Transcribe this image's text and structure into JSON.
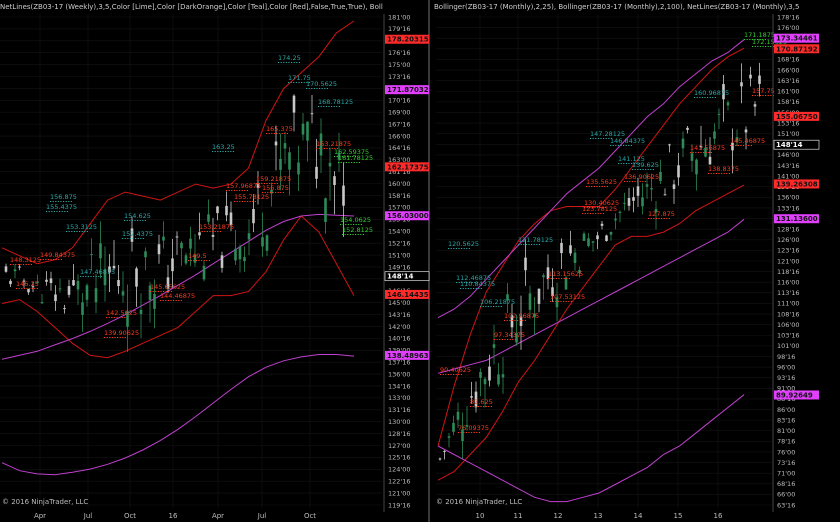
{
  "chart_data": [
    {
      "type": "candlestick",
      "header": "NetLines(ZB03-17 (Weekly),3,5,Color [Lime],Color [DarkOrange],Color [Teal],Color [Red],False,True,True), Boll",
      "copyright": "© 2016 NinjaTrader, LLC",
      "ylim": [
        119.3125,
        181.375
      ],
      "y_ticks": [
        "119'16",
        "121'00",
        "122'16",
        "124'00",
        "125'16",
        "127'00",
        "128'16",
        "130'00",
        "131'16",
        "133'00",
        "134'16",
        "136'00",
        "137'16",
        "139'00",
        "140'16",
        "142'00",
        "143'16",
        "145'00",
        "146'16",
        "148'00",
        "149'16",
        "151'00",
        "152'16",
        "154'00",
        "155'16",
        "157'00",
        "158'16",
        "160'00",
        "161'16",
        "163'00",
        "164'16",
        "166'00",
        "167'16",
        "169'00",
        "170'16",
        "172'00",
        "173'16",
        "175'00",
        "176'16",
        "178'00",
        "179'16",
        "181'00"
      ],
      "x_labels": [
        "Apr",
        "Jul",
        "Oct",
        "16",
        "Apr",
        "Jul",
        "Oct"
      ],
      "price_tags": [
        {
          "text": "178.20315",
          "value": 178.20315,
          "color": "#ff2a2a"
        },
        {
          "text": "171.87032",
          "value": 171.87032,
          "color": "#e040fb"
        },
        {
          "text": "162.17375",
          "value": 162.17375,
          "color": "#ff2a2a"
        },
        {
          "text": "156.03000",
          "value": 156.03,
          "color": "#e040fb"
        },
        {
          "text": "148'14",
          "value": 148.4375,
          "color": "#000000"
        },
        {
          "text": "146.14435",
          "value": 146.14435,
          "color": "#ff2a2a"
        },
        {
          "text": "138.48963",
          "value": 138.48963,
          "color": "#e040fb"
        }
      ],
      "level_labels": [
        {
          "text": "174.25",
          "color": "#2aa7a7"
        },
        {
          "text": "171.75",
          "color": "#2aa7a7"
        },
        {
          "text": "170.5625",
          "color": "#2aa7a7"
        },
        {
          "text": "168.78125",
          "color": "#2aa7a7"
        },
        {
          "text": "165.375",
          "color": "#ff3b1f"
        },
        {
          "text": "163.25",
          "color": "#2aa7a7"
        },
        {
          "text": "163.21875",
          "color": "#ff3b1f"
        },
        {
          "text": "162.59375",
          "color": "#32cd32"
        },
        {
          "text": "161.78125",
          "color": "#32cd32"
        },
        {
          "text": "159.21875",
          "color": "#ff3b1f"
        },
        {
          "text": "157.96875",
          "color": "#ff3b1f"
        },
        {
          "text": "156.875",
          "color": "#ff3b1f"
        },
        {
          "text": "155.78125",
          "color": "#ff3b1f"
        },
        {
          "text": "156.875",
          "color": "#2aa7a7"
        },
        {
          "text": "155.4375",
          "color": "#2aa7a7"
        },
        {
          "text": "154.625",
          "color": "#2aa7a7"
        },
        {
          "text": "154.0625",
          "color": "#32cd32"
        },
        {
          "text": "153.3125",
          "color": "#2aa7a7"
        },
        {
          "text": "153.21875",
          "color": "#ff3b1f"
        },
        {
          "text": "152.4375",
          "color": "#2aa7a7"
        },
        {
          "text": "152.8125",
          "color": "#32cd32"
        },
        {
          "text": "149.84375",
          "color": "#ff3b1f"
        },
        {
          "text": "149.5",
          "color": "#ff3b1f"
        },
        {
          "text": "148.3125",
          "color": "#ff3b1f"
        },
        {
          "text": "147.46875",
          "color": "#2aa7a7"
        },
        {
          "text": "146.25",
          "color": "#ff3b1f"
        },
        {
          "text": "145.65625",
          "color": "#ff3b1f"
        },
        {
          "text": "144.46875",
          "color": "#ff3b1f"
        },
        {
          "text": "142.5625",
          "color": "#ff3b1f"
        },
        {
          "text": "139.90625",
          "color": "#ff3b1f"
        }
      ],
      "series": [
        {
          "name": "upper band",
          "color": "#d11414",
          "values": [
            152,
            151,
            150,
            150.5,
            152,
            155,
            158,
            159,
            158.5,
            158,
            159,
            160,
            159.5,
            160,
            162,
            168,
            172,
            174,
            176,
            179,
            180.5
          ]
        },
        {
          "name": "lower band",
          "color": "#d11414",
          "values": [
            145,
            145.5,
            144,
            142,
            140,
            138.5,
            138.2,
            139,
            140,
            141,
            142,
            144,
            146,
            146,
            146.5,
            149,
            153,
            156,
            154,
            150,
            146
          ]
        },
        {
          "name": "long average",
          "color": "#c040d0",
          "values": [
            138,
            138.5,
            139,
            139.8,
            140.6,
            141.5,
            142.5,
            143.6,
            144.8,
            146,
            147.3,
            148.6,
            150,
            151.4,
            152.8,
            154.2,
            155.3,
            156,
            156.2,
            156.1,
            156
          ]
        },
        {
          "name": "long lower",
          "color": "#c040d0",
          "values": [
            125,
            124,
            123.6,
            123.5,
            123.8,
            124.2,
            124.8,
            125.6,
            126.6,
            127.8,
            129.2,
            130.8,
            132.5,
            134.2,
            135.8,
            137,
            137.8,
            138.3,
            138.6,
            138.6,
            138.4
          ]
        }
      ]
    },
    {
      "type": "candlestick",
      "header": "Bollinger(ZB03-17 (Monthly),2,25), Bollinger(ZB03-17 (Monthly),2,100), NetLines(ZB03-17 (Monthly),3,5",
      "copyright": "© 2016 NinjaTrader, LLC",
      "ylim": [
        63.5,
        179.0
      ],
      "y_ticks": [
        "63'16",
        "66'00",
        "68'16",
        "71'00",
        "73'16",
        "76'00",
        "78'16",
        "81'00",
        "83'16",
        "86'00",
        "88'16",
        "91'00",
        "93'16",
        "96'00",
        "98'16",
        "101'00",
        "103'16",
        "106'00",
        "108'16",
        "111'00",
        "113'16",
        "116'00",
        "118'16",
        "121'00",
        "123'16",
        "126'00",
        "128'16",
        "131'00",
        "133'16",
        "136'00",
        "138'16",
        "141'00",
        "143'16",
        "146'00",
        "148'16",
        "151'00",
        "153'16",
        "156'00",
        "158'16",
        "161'00",
        "163'16",
        "166'00",
        "168'16",
        "171'00",
        "173'16",
        "176'00",
        "178'16"
      ],
      "x_labels": [
        "10",
        "11",
        "12",
        "13",
        "14",
        "15",
        "16"
      ],
      "price_tags": [
        {
          "text": "173.34461",
          "value": 173.34461,
          "color": "#e040fb"
        },
        {
          "text": "170.87192",
          "value": 170.87192,
          "color": "#ff2a2a"
        },
        {
          "text": "155.06750",
          "value": 155.0675,
          "color": "#ff2a2a"
        },
        {
          "text": "148'14",
          "value": 148.4375,
          "color": "#000000"
        },
        {
          "text": "139.26308",
          "value": 139.26308,
          "color": "#ff2a2a"
        },
        {
          "text": "131.13600",
          "value": 131.136,
          "color": "#e040fb"
        },
        {
          "text": "89.92649",
          "value": 89.92649,
          "color": "#e040fb"
        }
      ],
      "level_labels": [
        {
          "text": "171.1875",
          "color": "#32cd32"
        },
        {
          "text": "172.15625",
          "color": "#32cd32"
        },
        {
          "text": "160.96875",
          "color": "#2aa7a7"
        },
        {
          "text": "157.75",
          "color": "#ff3b1f"
        },
        {
          "text": "147.28125",
          "color": "#2aa7a7"
        },
        {
          "text": "146.84375",
          "color": "#2aa7a7"
        },
        {
          "text": "145.46875",
          "color": "#ff3b1f"
        },
        {
          "text": "143.56875",
          "color": "#ff3b1f"
        },
        {
          "text": "141.125",
          "color": "#2aa7a7"
        },
        {
          "text": "139.625",
          "color": "#2aa7a7"
        },
        {
          "text": "138.8375",
          "color": "#ff3b1f"
        },
        {
          "text": "136.90625",
          "color": "#ff3b1f"
        },
        {
          "text": "135.5625",
          "color": "#ff3b1f"
        },
        {
          "text": "130.40625",
          "color": "#ff3b1f"
        },
        {
          "text": "127.875",
          "color": "#ff3b1f"
        },
        {
          "text": "123.78125",
          "color": "#ff3b1f"
        },
        {
          "text": "121.78125",
          "color": "#2aa7a7"
        },
        {
          "text": "120.5625",
          "color": "#2aa7a7"
        },
        {
          "text": "113.15625",
          "color": "#ff3b1f"
        },
        {
          "text": "112.46875",
          "color": "#2aa7a7"
        },
        {
          "text": "110.84375",
          "color": "#2aa7a7"
        },
        {
          "text": "107.53125",
          "color": "#ff3b1f"
        },
        {
          "text": "106.21875",
          "color": "#2aa7a7"
        },
        {
          "text": "102.96875",
          "color": "#ff3b1f"
        },
        {
          "text": "97.34375",
          "color": "#ff3b1f"
        },
        {
          "text": "90.40625",
          "color": "#ff3b1f"
        },
        {
          "text": "82.625",
          "color": "#ff3b1f"
        },
        {
          "text": "76.09375",
          "color": "#ff3b1f"
        }
      ],
      "series": [
        {
          "name": "upper 25",
          "color": "#d11414",
          "values": [
            78,
            92,
            104,
            114,
            120,
            126,
            130,
            133,
            134,
            134,
            134,
            138,
            143,
            148,
            153,
            158,
            162,
            166,
            169,
            171
          ]
        },
        {
          "name": "lower 25",
          "color": "#d11414",
          "values": [
            70,
            72,
            76,
            80,
            86,
            93,
            98,
            104,
            110,
            115,
            120,
            125,
            127,
            127,
            128,
            130,
            133,
            135,
            137,
            139
          ]
        },
        {
          "name": "upper 100",
          "color": "#c040d0",
          "values": [
            108,
            110,
            113,
            117,
            121,
            125,
            129,
            133,
            137,
            140,
            143,
            147,
            151,
            155,
            158,
            162,
            165,
            168,
            170,
            173
          ]
        },
        {
          "name": "mid 100",
          "color": "#c040d0",
          "values": [
            95,
            96,
            97,
            98,
            100,
            102,
            104,
            106,
            108,
            110,
            112,
            114,
            116,
            118,
            120,
            122,
            124,
            126,
            128,
            131
          ]
        },
        {
          "name": "lower 100",
          "color": "#c040d0",
          "values": [
            78,
            76,
            74,
            72,
            70,
            68,
            66,
            65,
            65,
            66,
            67,
            69,
            71,
            73,
            76,
            78,
            81,
            84,
            87,
            90
          ]
        }
      ]
    }
  ]
}
